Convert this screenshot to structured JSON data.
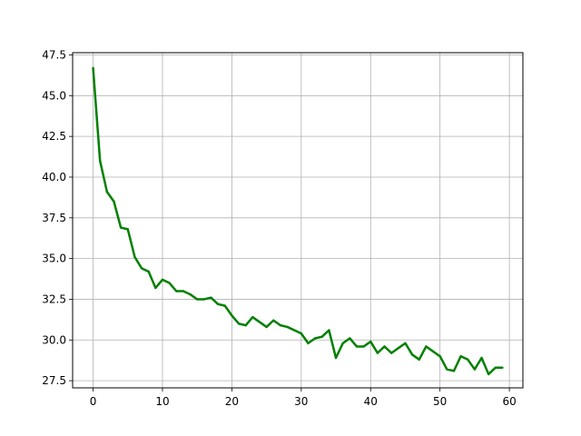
{
  "chart_data": {
    "type": "line",
    "title": "",
    "xlabel": "",
    "ylabel": "",
    "xlim": [
      -2.95,
      61.95
    ],
    "ylim": [
      27.06,
      47.64
    ],
    "grid": true,
    "x_ticks": [
      0,
      10,
      20,
      30,
      40,
      50,
      60
    ],
    "x_tick_labels": [
      "0",
      "10",
      "20",
      "30",
      "40",
      "50",
      "60"
    ],
    "y_ticks": [
      27.5,
      30.0,
      32.5,
      35.0,
      37.5,
      40.0,
      42.5,
      45.0,
      47.5
    ],
    "y_tick_labels": [
      "27.5",
      "30.0",
      "32.5",
      "35.0",
      "37.5",
      "40.0",
      "42.5",
      "45.0",
      "47.5"
    ],
    "series": [
      {
        "color": "#008000",
        "x": [
          0,
          1,
          2,
          3,
          4,
          5,
          6,
          7,
          8,
          9,
          10,
          11,
          12,
          13,
          14,
          15,
          16,
          17,
          18,
          19,
          20,
          21,
          22,
          23,
          24,
          25,
          26,
          27,
          28,
          29,
          30,
          31,
          32,
          33,
          34,
          35,
          36,
          37,
          38,
          39,
          40,
          41,
          42,
          43,
          44,
          45,
          46,
          47,
          48,
          49,
          50,
          51,
          52,
          53,
          54,
          55,
          56,
          57,
          58,
          59
        ],
        "values": [
          46.7,
          41.0,
          39.1,
          38.5,
          36.9,
          36.8,
          35.1,
          34.4,
          34.2,
          33.2,
          33.7,
          33.5,
          33.0,
          33.0,
          32.8,
          32.5,
          32.5,
          32.6,
          32.2,
          32.1,
          31.5,
          31.0,
          30.9,
          31.4,
          31.1,
          30.8,
          31.2,
          30.9,
          30.8,
          30.6,
          30.4,
          29.8,
          30.1,
          30.2,
          30.6,
          28.9,
          29.8,
          30.1,
          29.6,
          29.6,
          29.9,
          29.2,
          29.6,
          29.2,
          29.5,
          29.8,
          29.1,
          28.8,
          29.6,
          29.3,
          29.0,
          28.2,
          28.1,
          29.0,
          28.8,
          28.2,
          28.9,
          27.9,
          28.3,
          28.3
        ]
      }
    ]
  }
}
